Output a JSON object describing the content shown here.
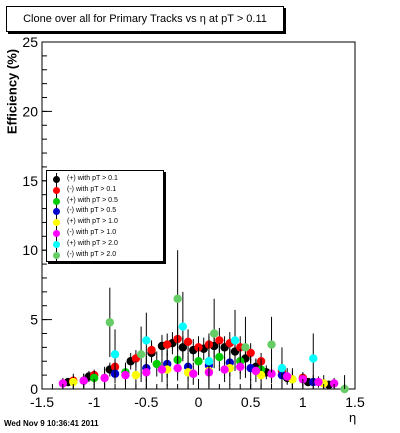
{
  "chart_data": {
    "type": "scatter",
    "title": "Clone  over all for Primary Tracks vs   η at pT > 0.11",
    "xlabel": "η",
    "ylabel": "Efficiency (%)",
    "xlim": [
      -1.5,
      1.5
    ],
    "ylim": [
      0,
      25
    ],
    "xticks": [
      -1.5,
      -1,
      -0.5,
      0,
      0.5,
      1,
      1.5
    ],
    "yticks": [
      0,
      5,
      10,
      15,
      20,
      25
    ],
    "grid": false,
    "legend_position": "center-left",
    "series": [
      {
        "name": "(+) with pT > 0.1",
        "color": "#000000",
        "x": [
          -1.25,
          -1.05,
          -0.85,
          -0.65,
          -0.45,
          -0.35,
          -0.25,
          -0.15,
          -0.05,
          0.05,
          0.15,
          0.25,
          0.35,
          0.45,
          0.55,
          0.65,
          0.85,
          1.05,
          1.25
        ],
        "y": [
          0.5,
          0.9,
          1.4,
          2.0,
          2.6,
          3.1,
          3.3,
          3.0,
          2.8,
          2.9,
          3.1,
          3.0,
          2.7,
          2.2,
          1.6,
          1.2,
          0.8,
          0.5,
          0.3
        ],
        "err": [
          0.3,
          0.4,
          0.5,
          0.6,
          0.7,
          0.8,
          0.8,
          0.8,
          0.8,
          0.8,
          0.8,
          0.8,
          0.8,
          0.7,
          0.6,
          0.5,
          0.4,
          0.3,
          0.3
        ]
      },
      {
        "name": "(-) with pT > 0.1",
        "color": "#ff0000",
        "x": [
          -1.2,
          -1.0,
          -0.8,
          -0.6,
          -0.45,
          -0.3,
          -0.2,
          -0.1,
          0.0,
          0.1,
          0.2,
          0.3,
          0.4,
          0.5,
          0.6,
          0.8,
          1.0,
          1.2
        ],
        "y": [
          0.6,
          1.0,
          1.6,
          2.2,
          2.8,
          3.2,
          3.6,
          3.4,
          3.0,
          3.2,
          3.5,
          3.3,
          3.0,
          2.6,
          2.0,
          1.3,
          0.8,
          0.4
        ],
        "err": [
          0.3,
          0.4,
          0.5,
          0.6,
          0.7,
          0.8,
          0.9,
          0.9,
          0.8,
          0.8,
          0.9,
          0.8,
          0.8,
          0.7,
          0.6,
          0.5,
          0.4,
          0.3
        ]
      },
      {
        "name": "(+) with pT > 0.5",
        "color": "#00cc00",
        "x": [
          -1.0,
          -0.7,
          -0.4,
          -0.2,
          0.0,
          0.2,
          0.4,
          0.6,
          0.9
        ],
        "y": [
          0.8,
          1.2,
          1.8,
          2.1,
          2.0,
          2.3,
          2.0,
          1.4,
          0.7
        ],
        "err": [
          0.5,
          0.7,
          0.9,
          1.0,
          1.0,
          1.0,
          0.9,
          0.8,
          0.6
        ]
      },
      {
        "name": "(-) with pT > 0.5",
        "color": "#0000cc",
        "x": [
          -1.1,
          -0.8,
          -0.5,
          -0.3,
          -0.1,
          0.1,
          0.3,
          0.5,
          0.8,
          1.1
        ],
        "y": [
          0.6,
          1.1,
          1.5,
          1.8,
          1.6,
          1.7,
          1.9,
          1.5,
          1.0,
          0.5
        ],
        "err": [
          0.5,
          0.7,
          0.9,
          1.0,
          1.0,
          1.0,
          1.0,
          0.9,
          0.7,
          0.5
        ]
      },
      {
        "name": "(+) with pT > 1.0",
        "color": "#ffff00",
        "x": [
          -1.2,
          -0.9,
          -0.6,
          -0.3,
          -0.1,
          0.1,
          0.3,
          0.6,
          0.9,
          1.2
        ],
        "y": [
          0.5,
          0.8,
          1.0,
          1.4,
          1.2,
          1.3,
          1.5,
          1.0,
          0.7,
          0.4
        ],
        "err": [
          0.6,
          0.8,
          1.0,
          1.2,
          1.2,
          1.2,
          1.2,
          1.0,
          0.8,
          0.6
        ]
      },
      {
        "name": "(-) with pT > 1.0",
        "color": "#ff00ff",
        "x": [
          -1.3,
          -1.1,
          -0.9,
          -0.7,
          -0.5,
          -0.35,
          -0.2,
          -0.05,
          0.1,
          0.25,
          0.4,
          0.55,
          0.7,
          0.85,
          1.0,
          1.15,
          1.3
        ],
        "y": [
          0.4,
          0.6,
          0.8,
          1.0,
          1.2,
          1.4,
          1.5,
          1.1,
          1.2,
          1.4,
          1.6,
          1.3,
          1.1,
          0.9,
          0.7,
          0.5,
          0.4
        ],
        "err": [
          0.4,
          0.5,
          0.6,
          0.7,
          0.8,
          0.9,
          0.9,
          0.8,
          0.8,
          0.9,
          0.9,
          0.8,
          0.7,
          0.6,
          0.5,
          0.4,
          0.4
        ]
      },
      {
        "name": "(+) with pT > 2.0",
        "color": "#00ffff",
        "x": [
          -0.8,
          -0.5,
          -0.15,
          0.1,
          0.35,
          0.8,
          1.1
        ],
        "y": [
          2.5,
          3.5,
          4.5,
          2.0,
          3.5,
          1.5,
          2.2
        ],
        "err": [
          1.8,
          2.0,
          2.5,
          1.8,
          2.2,
          1.5,
          1.8
        ]
      },
      {
        "name": "(-) with pT > 2.0",
        "color": "#66cc66",
        "x": [
          -0.85,
          -0.55,
          -0.2,
          0.15,
          0.45,
          0.7,
          1.4
        ],
        "y": [
          4.8,
          2.5,
          6.5,
          4.0,
          3.0,
          3.2,
          0.0
        ],
        "err": [
          2.5,
          2.0,
          3.5,
          2.5,
          2.2,
          2.0,
          1.0
        ]
      }
    ]
  },
  "timestamp": "Wed Nov  9 10:36:41 2011"
}
